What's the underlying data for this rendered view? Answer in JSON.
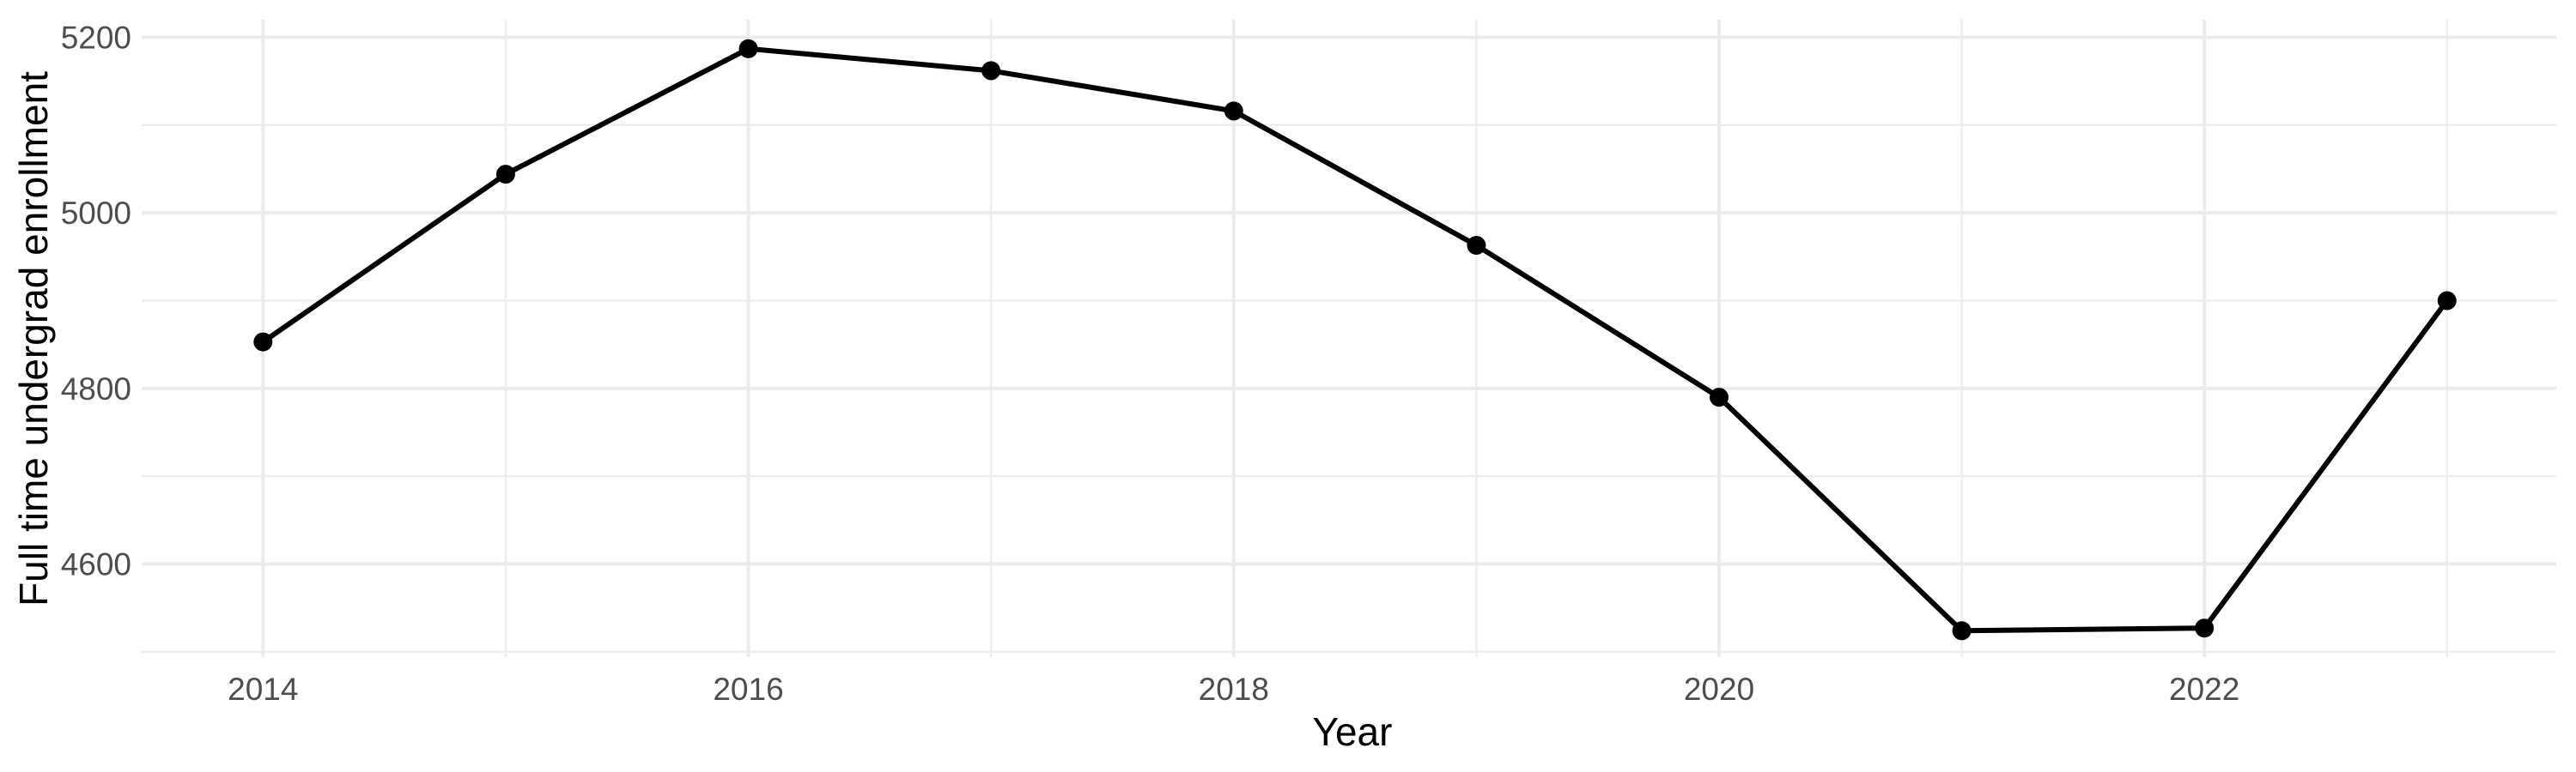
{
  "chart_data": {
    "type": "line",
    "title": "",
    "xlabel": "Year",
    "ylabel": "Full time undergrad enrollment",
    "series": [
      {
        "name": "full-time-undergrad-enrollment",
        "x": [
          2014,
          2015,
          2016,
          2017,
          2018,
          2019,
          2020,
          2021,
          2022,
          2023
        ],
        "values": [
          4853,
          5044,
          5187,
          5162,
          5116,
          4963,
          4790,
          4524,
          4527,
          4900
        ]
      }
    ],
    "x_major_ticks": [
      2014,
      2016,
      2018,
      2020,
      2022
    ],
    "x_minor_gridlines": [
      2015,
      2017,
      2019,
      2021,
      2023
    ],
    "y_major_ticks": [
      4600,
      4800,
      5000,
      5200
    ],
    "y_minor_gridlines": [
      4500,
      4700,
      4900,
      5100
    ],
    "xlim": [
      2013.5,
      2023.45
    ],
    "ylim": [
      4494,
      5220
    ],
    "grid": "major-and-minor",
    "legend_position": "none",
    "marker": "filled-circle",
    "colors": {
      "line": "#000000",
      "point": "#000000",
      "grid_major": "#EBEBEB",
      "grid_minor": "#EDEDED",
      "tick_label": "#4D4D4D",
      "axis_title": "#000000",
      "background": "#FFFFFF"
    }
  }
}
